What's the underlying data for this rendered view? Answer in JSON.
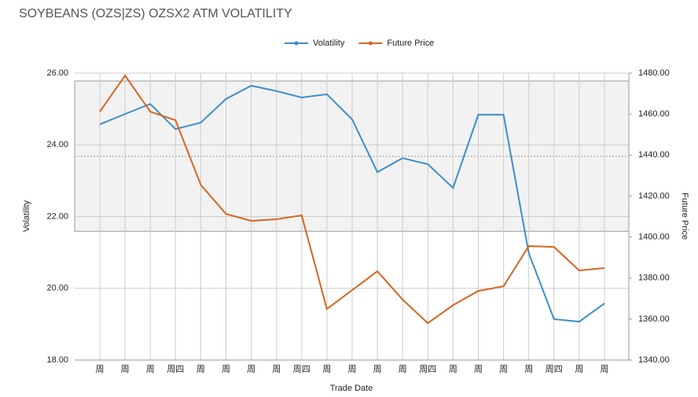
{
  "chart_data": {
    "type": "line",
    "title": "SOYBEANS (OZS|ZS) OZSX2 ATM VOLATILITY",
    "xlabel": "Trade Date",
    "ylabel": "Volatility",
    "y2label": "Future Price",
    "categories": [
      "周",
      "周",
      "周",
      "周四",
      "周",
      "周",
      "周",
      "周",
      "周四",
      "周",
      "周",
      "周",
      "周",
      "周四",
      "周",
      "周",
      "周",
      "周",
      "周四",
      "周",
      "周"
    ],
    "series": [
      {
        "name": "Volatility",
        "color": "#3d8fc6",
        "values": [
          24.57,
          24.86,
          25.14,
          24.44,
          24.62,
          25.28,
          25.65,
          25.5,
          25.32,
          25.41,
          24.71,
          23.24,
          23.63,
          23.46,
          22.8,
          24.84,
          24.84,
          20.98,
          19.14,
          19.07,
          19.58
        ]
      },
      {
        "name": "Future Price",
        "color": "#d4661f",
        "axis": "y2",
        "values": [
          1461.2,
          1478.8,
          1461.2,
          1457.0,
          1425.5,
          1411.3,
          1407.9,
          1408.7,
          1410.6,
          1364.9,
          1374.1,
          1383.3,
          1369.5,
          1358.0,
          1366.8,
          1373.7,
          1376.0,
          1395.6,
          1395.2,
          1383.7,
          1384.9
        ]
      }
    ],
    "band": [
      21.59,
      25.78
    ],
    "band_mean": 23.68,
    "ylim": [
      18,
      26
    ],
    "yticks": [
      {
        "value": 18,
        "label": "18.00"
      },
      {
        "value": 20,
        "label": "20.00"
      },
      {
        "value": 22,
        "label": "22.00"
      },
      {
        "value": 24,
        "label": "24.00"
      },
      {
        "value": 26,
        "label": "26.00"
      }
    ],
    "y2lim": [
      1340,
      1480
    ],
    "y2ticks": [
      {
        "value": 1340,
        "label": "1340.00"
      },
      {
        "value": 1360,
        "label": "1360.00"
      },
      {
        "value": 1380,
        "label": "1380.00"
      },
      {
        "value": 1400,
        "label": "1400.00"
      },
      {
        "value": 1420,
        "label": "1420.00"
      },
      {
        "value": 1440,
        "label": "1440.00"
      },
      {
        "value": 1460,
        "label": "1460.00"
      },
      {
        "value": 1480,
        "label": "1480.00"
      }
    ],
    "grid": true,
    "legend": "top"
  }
}
